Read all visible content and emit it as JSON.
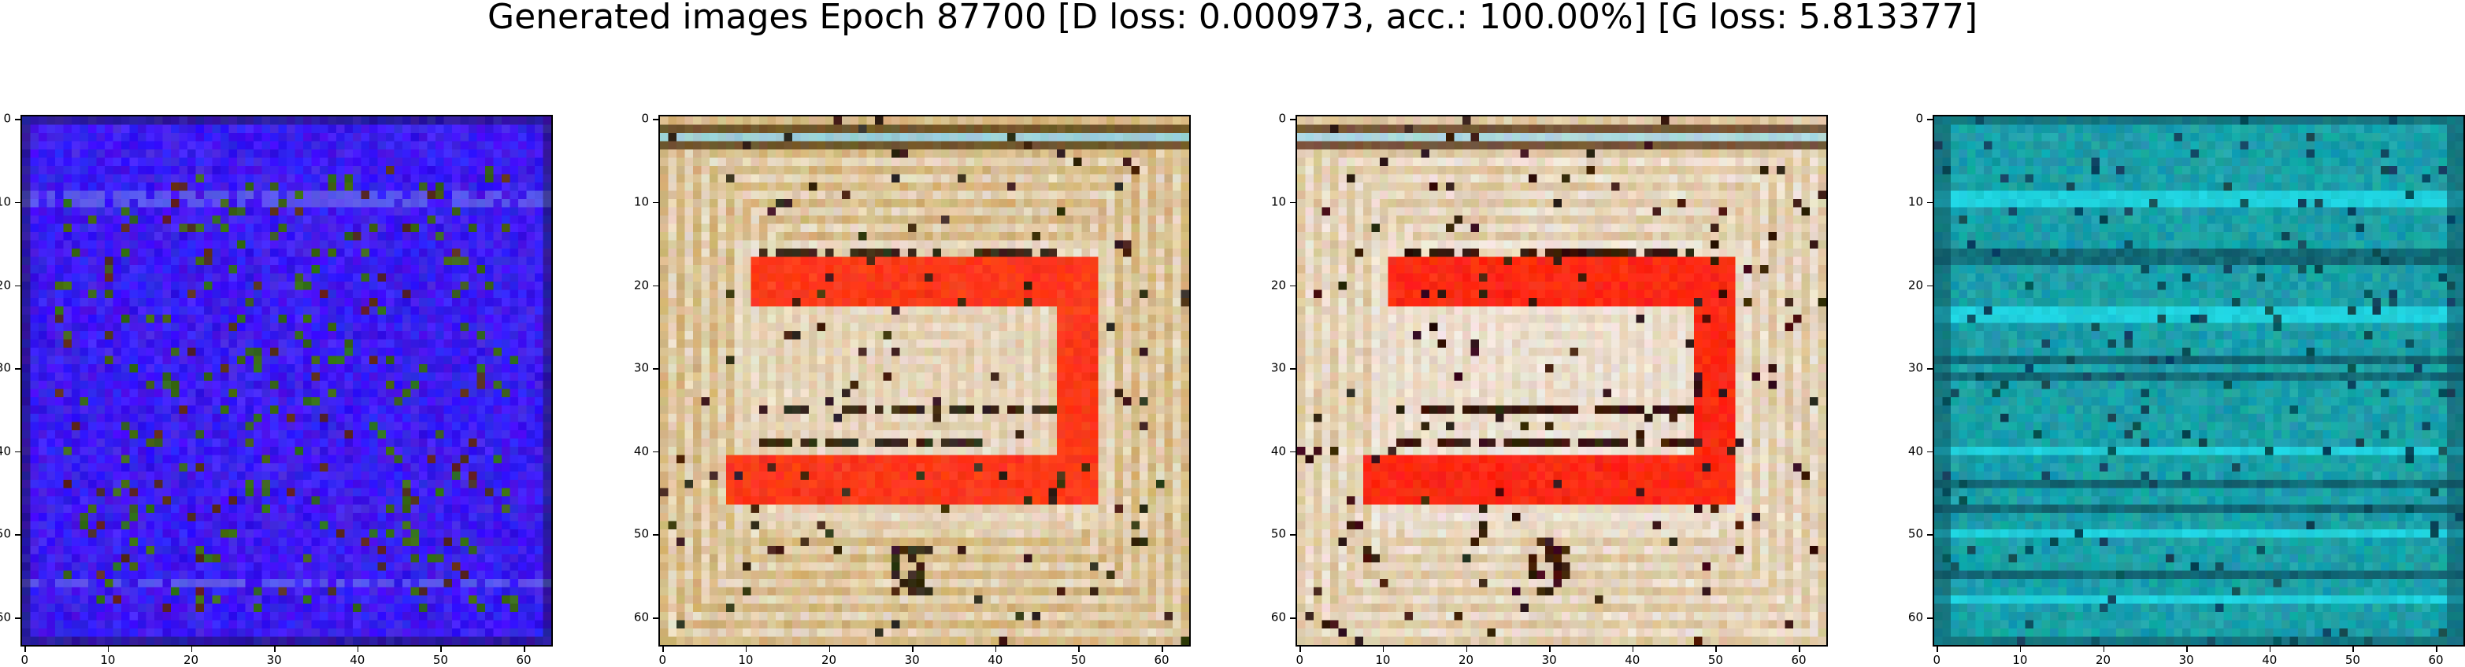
{
  "figure": {
    "title": "Generated images Epoch 87700 [D loss: 0.000973, acc.: 100.00%] [G loss: 5.813377]"
  },
  "axes": {
    "x_ticks": [
      "0",
      "10",
      "20",
      "30",
      "40",
      "50",
      "60"
    ],
    "y_ticks": [
      "0",
      "10",
      "20",
      "30",
      "40",
      "50",
      "60"
    ],
    "extent": [
      0,
      64
    ]
  },
  "panels": [
    {
      "name": "sample-1",
      "base_color": "#3c1cf0",
      "stripe_color": "#7a8ee8",
      "blob_color": "#3a6a1a",
      "accent_color": "#5a2a20",
      "kind": "noisy"
    },
    {
      "name": "sample-2",
      "base_color": "#c49a4a",
      "light_color": "#f0e6da",
      "frame_color": "#ff3a1a",
      "dark_color": "#3a2a18",
      "stripe_color": "#86c8d8",
      "kind": "frame"
    },
    {
      "name": "sample-3",
      "base_color": "#d0b074",
      "light_color": "#f4ece8",
      "frame_color": "#ff2a14",
      "dark_color": "#3a1a10",
      "stripe_color": "#9ad0dc",
      "kind": "frame"
    },
    {
      "name": "sample-4",
      "base_color": "#1aa0a8",
      "light_color": "#22e0ee",
      "dark_color": "#0e4a5a",
      "stripe_color": "#20d8e8",
      "kind": "stripes"
    }
  ]
}
